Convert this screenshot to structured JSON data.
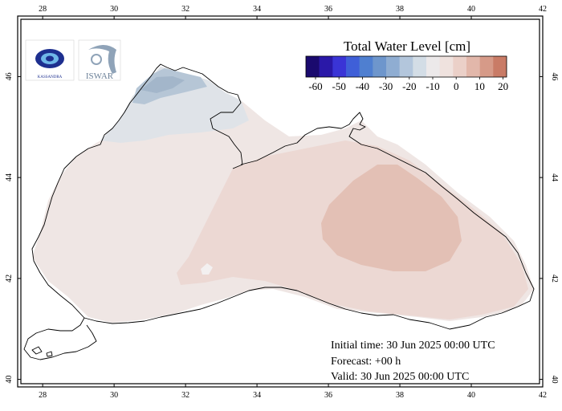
{
  "map": {
    "x_ticks": [
      "28",
      "30",
      "32",
      "34",
      "36",
      "38",
      "40",
      "42"
    ],
    "y_ticks": [
      "46",
      "44",
      "42",
      "40"
    ]
  },
  "legend": {
    "title": "Total Water Level [cm]",
    "labels": [
      "-60",
      "-50",
      "-40",
      "-30",
      "-20",
      "-10",
      "0",
      "10",
      "20"
    ],
    "colors": [
      "#1a0a6e",
      "#2a18a8",
      "#3a34d6",
      "#3f5fd8",
      "#4f7fd0",
      "#6e96cc",
      "#8fadd2",
      "#b3c6dc",
      "#d3dde6",
      "#ece9ea",
      "#efe2de",
      "#ebd0c8",
      "#e2b7aa",
      "#d69a88",
      "#c97b66"
    ]
  },
  "logos": [
    {
      "name": "Kassandra",
      "text": "KASSANDRA"
    },
    {
      "name": "Iswar",
      "text": "ISWAR"
    }
  ],
  "info": {
    "initial": "Initial time: 30 Jun 2025 00:00 UTC",
    "forecast": "Forecast: +00 h",
    "valid": "Valid: 30 Jun 2025 00:00 UTC"
  }
}
